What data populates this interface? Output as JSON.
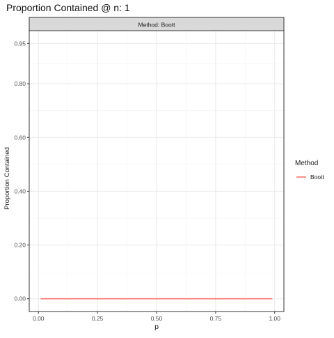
{
  "chart_data": {
    "type": "line",
    "title": "Proportion Contained @ n: 1",
    "facet_label": "Method: Boott",
    "xlabel": "p",
    "ylabel": "Proportion Contained",
    "xlim": [
      0,
      1
    ],
    "ylim": [
      0,
      1
    ],
    "x_ticks": [
      0.0,
      0.25,
      0.5,
      0.75,
      1.0
    ],
    "x_tick_labels": [
      "0.00",
      "0.25",
      "0.50",
      "0.75",
      "1.00"
    ],
    "y_ticks": [
      0.0,
      0.2,
      0.4,
      0.6,
      0.8,
      0.95
    ],
    "y_tick_labels": [
      "0.00",
      "0.20",
      "0.40",
      "0.60",
      "0.80",
      "0.95"
    ],
    "grid": true,
    "legend": {
      "title": "Method",
      "placement": "right",
      "entries": [
        {
          "label": "Boott",
          "color": "#f8766d"
        }
      ]
    },
    "series": [
      {
        "name": "Boott",
        "color": "#f8766d",
        "x": [
          0.01,
          0.25,
          0.5,
          0.75,
          0.99
        ],
        "y": [
          0.0,
          0.0,
          0.0,
          0.0,
          0.0
        ]
      }
    ]
  }
}
